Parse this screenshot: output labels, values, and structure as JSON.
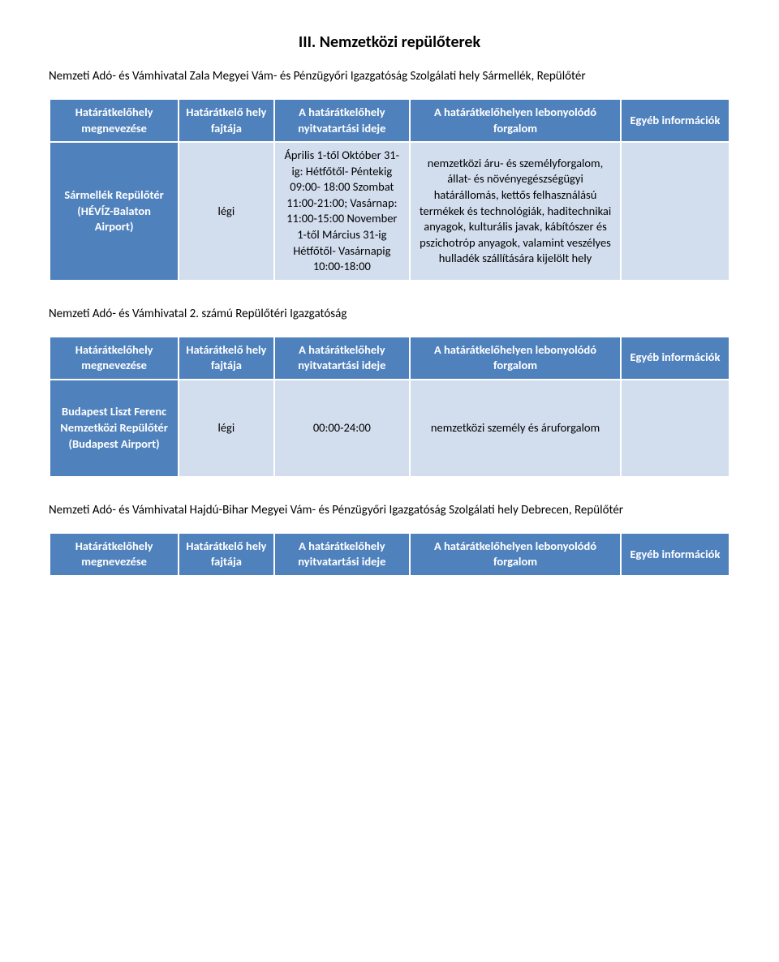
{
  "colors": {
    "header_bg": "#4f81bd",
    "header_fg": "#ffffff",
    "cell_bg": "#d2deee",
    "cell_fg": "#000000",
    "border": "#ffffff",
    "page_bg": "#ffffff"
  },
  "section_title": "III. Nemzetközi repülőterek",
  "table1": {
    "intro": "Nemzeti Adó- és Vámhivatal Zala Megyei Vám- és Pénzügyőri Igazgatóság Szolgálati hely Sármellék, Repülőtér",
    "headers": {
      "c1": "Határátkelőhely megnevezése",
      "c2": "Határátkelő hely fajtája",
      "c3": "A határátkelőhely nyitvatartási ideje",
      "c4": "A határátkelőhelyen lebonyolódó forgalom",
      "c5": "Egyéb információk"
    },
    "row": {
      "name": "Sármellék Repülőtér (HÉVÍZ-Balaton Airport)",
      "type": "légi",
      "hours": "Április 1-től Október 31-ig: Hétfőtől- Péntekig 09:00- 18:00 Szombat 11:00-21:00; Vasárnap: 11:00-15:00 November 1-től Március 31-ig Hétfőtől- Vasárnapig 10:00-18:00",
      "traffic": "nemzetközi áru- és személyforgalom, állat- és növényegészségügyi határállomás, kettős felhasználású termékek és technológiák, haditechnikai anyagok, kulturális javak, kábítószer és pszichotróp anyagok, valamint veszélyes hulladék szállítására kijelölt hely",
      "other": ""
    }
  },
  "table2": {
    "intro": "Nemzeti Adó- és Vámhivatal 2. számú Repülőtéri Igazgatóság",
    "headers": {
      "c1": "Határátkelőhely megnevezése",
      "c2": "Határátkelő hely fajtája",
      "c3": "A határátkelőhely nyitvatartási ideje",
      "c4": "A határátkelőhelyen lebonyolódó forgalom",
      "c5": "Egyéb információk"
    },
    "row": {
      "name": "Budapest Liszt Ferenc Nemzetközi Repülőtér (Budapest Airport)",
      "type": "légi",
      "hours": "00:00-24:00",
      "traffic": "nemzetközi személy és áruforgalom",
      "other": ""
    }
  },
  "table3": {
    "intro": "Nemzeti Adó- és Vámhivatal Hajdú-Bihar Megyei Vám- és Pénzügyőri Igazgatóság Szolgálati hely Debrecen, Repülőtér",
    "headers": {
      "c1": "Határátkelőhely megnevezése",
      "c2": "Határátkelő hely fajtája",
      "c3": "A határátkelőhely nyitvatartási ideje",
      "c4": "A határátkelőhelyen lebonyolódó forgalom",
      "c5": "Egyéb információk"
    }
  }
}
